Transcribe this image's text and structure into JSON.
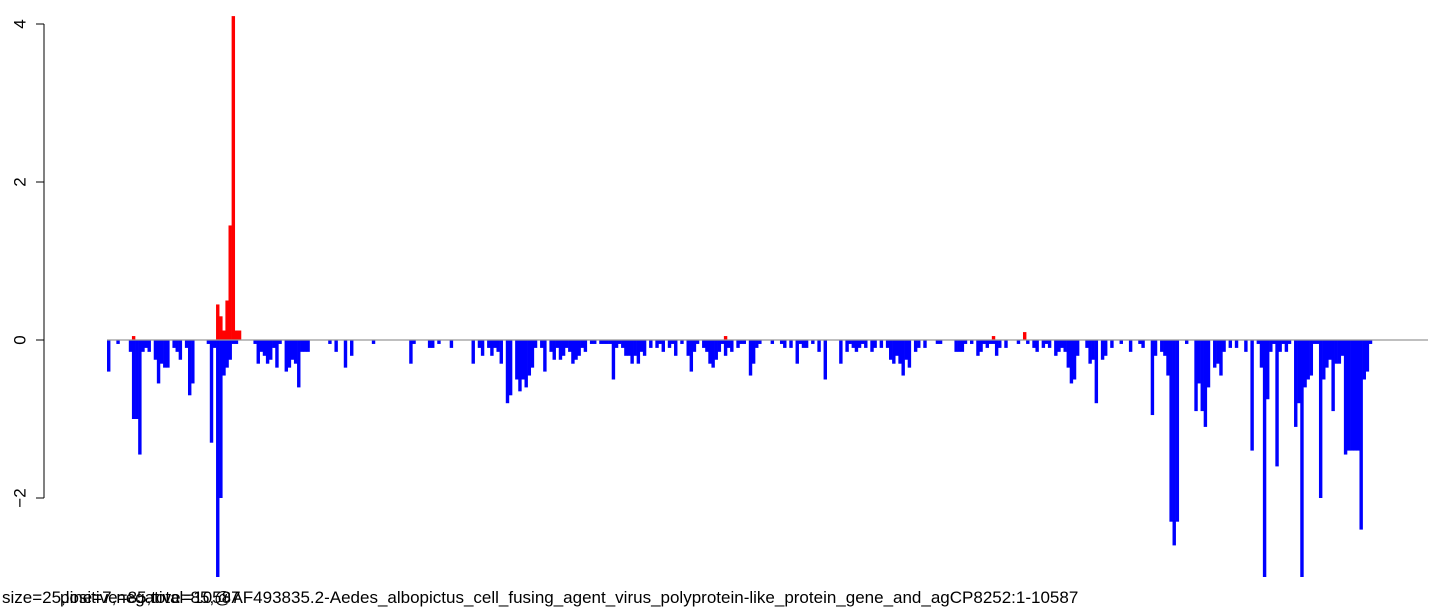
{
  "chart_data": {
    "type": "bar",
    "xlabel": "size=25,line=7,negative=85,@AF493835.2-Aedes_albopictus_cell_fusing_agent_virus_polyprotein-like_protein_gene_and_agCP8252:1-10587",
    "xlabel_overlap": "positive=85,total=10587",
    "ylim": [
      -3.0,
      4.2
    ],
    "yticks": [
      -2,
      0,
      2,
      4
    ],
    "ytick_labels": [
      "−2",
      "0",
      "2",
      "4"
    ],
    "bin_count": 424,
    "colors": {
      "positive": "#ff0000",
      "negative": "#0000ff",
      "baseline": "#999999"
    },
    "negative_bars": [
      [
        0,
        -0.4
      ],
      [
        3,
        -0.05
      ],
      [
        7,
        -0.15
      ],
      [
        8,
        -1.0
      ],
      [
        9,
        -1.0
      ],
      [
        10,
        -1.45
      ],
      [
        11,
        -0.15
      ],
      [
        12,
        -0.1
      ],
      [
        13,
        -0.15
      ],
      [
        15,
        -0.25
      ],
      [
        16,
        -0.55
      ],
      [
        17,
        -0.3
      ],
      [
        18,
        -0.35
      ],
      [
        19,
        -0.35
      ],
      [
        21,
        -0.1
      ],
      [
        22,
        -0.15
      ],
      [
        23,
        -0.25
      ],
      [
        25,
        -0.1
      ],
      [
        26,
        -0.7
      ],
      [
        27,
        -0.55
      ],
      [
        32,
        -0.05
      ],
      [
        33,
        -1.3
      ],
      [
        34,
        -0.1
      ],
      [
        35,
        -3.0
      ],
      [
        36,
        -2.0
      ],
      [
        37,
        -0.45
      ],
      [
        38,
        -0.35
      ],
      [
        39,
        -0.25
      ],
      [
        40,
        -0.05
      ],
      [
        41,
        -0.05
      ],
      [
        47,
        -0.05
      ],
      [
        48,
        -0.3
      ],
      [
        49,
        -0.15
      ],
      [
        50,
        -0.2
      ],
      [
        51,
        -0.3
      ],
      [
        52,
        -0.25
      ],
      [
        53,
        -0.1
      ],
      [
        54,
        -0.35
      ],
      [
        55,
        -0.05
      ],
      [
        57,
        -0.4
      ],
      [
        58,
        -0.35
      ],
      [
        59,
        -0.25
      ],
      [
        60,
        -0.3
      ],
      [
        61,
        -0.6
      ],
      [
        62,
        -0.15
      ],
      [
        63,
        -0.15
      ],
      [
        64,
        -0.15
      ],
      [
        71,
        -0.05
      ],
      [
        73,
        -0.15
      ],
      [
        76,
        -0.35
      ],
      [
        78,
        -0.2
      ],
      [
        85,
        -0.05
      ],
      [
        97,
        -0.3
      ],
      [
        98,
        -0.05
      ],
      [
        103,
        -0.1
      ],
      [
        104,
        -0.1
      ],
      [
        106,
        -0.05
      ],
      [
        110,
        -0.1
      ],
      [
        117,
        -0.3
      ],
      [
        119,
        -0.1
      ],
      [
        120,
        -0.2
      ],
      [
        122,
        -0.1
      ],
      [
        123,
        -0.2
      ],
      [
        124,
        -0.1
      ],
      [
        125,
        -0.15
      ],
      [
        126,
        -0.3
      ],
      [
        128,
        -0.8
      ],
      [
        129,
        -0.7
      ],
      [
        131,
        -0.5
      ],
      [
        132,
        -0.65
      ],
      [
        133,
        -0.5
      ],
      [
        134,
        -0.6
      ],
      [
        135,
        -0.45
      ],
      [
        136,
        -0.35
      ],
      [
        137,
        -0.1
      ],
      [
        139,
        -0.1
      ],
      [
        140,
        -0.4
      ],
      [
        142,
        -0.15
      ],
      [
        143,
        -0.25
      ],
      [
        144,
        -0.1
      ],
      [
        145,
        -0.25
      ],
      [
        146,
        -0.2
      ],
      [
        147,
        -0.1
      ],
      [
        148,
        -0.15
      ],
      [
        149,
        -0.3
      ],
      [
        150,
        -0.25
      ],
      [
        151,
        -0.2
      ],
      [
        152,
        -0.1
      ],
      [
        153,
        -0.15
      ],
      [
        155,
        -0.05
      ],
      [
        156,
        -0.05
      ],
      [
        158,
        -0.05
      ],
      [
        159,
        -0.05
      ],
      [
        160,
        -0.05
      ],
      [
        161,
        -0.05
      ],
      [
        162,
        -0.5
      ],
      [
        163,
        -0.1
      ],
      [
        164,
        -0.05
      ],
      [
        165,
        -0.1
      ],
      [
        166,
        -0.2
      ],
      [
        167,
        -0.2
      ],
      [
        168,
        -0.3
      ],
      [
        169,
        -0.2
      ],
      [
        170,
        -0.3
      ],
      [
        171,
        -0.15
      ],
      [
        172,
        -0.2
      ],
      [
        174,
        -0.1
      ],
      [
        176,
        -0.1
      ],
      [
        177,
        -0.05
      ],
      [
        178,
        -0.15
      ],
      [
        180,
        -0.1
      ],
      [
        181,
        -0.05
      ],
      [
        182,
        -0.2
      ],
      [
        184,
        -0.05
      ],
      [
        186,
        -0.2
      ],
      [
        187,
        -0.4
      ],
      [
        188,
        -0.15
      ],
      [
        189,
        -0.05
      ],
      [
        191,
        -0.1
      ],
      [
        192,
        -0.15
      ],
      [
        193,
        -0.3
      ],
      [
        194,
        -0.35
      ],
      [
        195,
        -0.25
      ],
      [
        196,
        -0.15
      ],
      [
        197,
        -0.05
      ],
      [
        198,
        -0.2
      ],
      [
        199,
        -0.1
      ],
      [
        200,
        -0.15
      ],
      [
        202,
        -0.1
      ],
      [
        203,
        -0.05
      ],
      [
        204,
        -0.05
      ],
      [
        206,
        -0.45
      ],
      [
        207,
        -0.3
      ],
      [
        208,
        -0.1
      ],
      [
        209,
        -0.05
      ],
      [
        213,
        -0.05
      ],
      [
        216,
        -0.05
      ],
      [
        217,
        -0.1
      ],
      [
        219,
        -0.1
      ],
      [
        221,
        -0.3
      ],
      [
        222,
        -0.05
      ],
      [
        223,
        -0.1
      ],
      [
        224,
        -0.1
      ],
      [
        226,
        -0.05
      ],
      [
        228,
        -0.15
      ],
      [
        230,
        -0.5
      ],
      [
        235,
        -0.3
      ],
      [
        237,
        -0.15
      ],
      [
        238,
        -0.05
      ],
      [
        239,
        -0.1
      ],
      [
        240,
        -0.15
      ],
      [
        241,
        -0.1
      ],
      [
        242,
        -0.05
      ],
      [
        243,
        -0.1
      ],
      [
        245,
        -0.15
      ],
      [
        246,
        -0.1
      ],
      [
        248,
        -0.1
      ],
      [
        250,
        -0.1
      ],
      [
        251,
        -0.25
      ],
      [
        252,
        -0.3
      ],
      [
        253,
        -0.2
      ],
      [
        254,
        -0.3
      ],
      [
        255,
        -0.45
      ],
      [
        256,
        -0.25
      ],
      [
        257,
        -0.35
      ],
      [
        259,
        -0.15
      ],
      [
        260,
        -0.1
      ],
      [
        262,
        -0.1
      ],
      [
        266,
        -0.05
      ],
      [
        267,
        -0.05
      ],
      [
        272,
        -0.15
      ],
      [
        273,
        -0.15
      ],
      [
        274,
        -0.15
      ],
      [
        275,
        -0.05
      ],
      [
        277,
        -0.05
      ],
      [
        279,
        -0.2
      ],
      [
        280,
        -0.15
      ],
      [
        281,
        -0.05
      ],
      [
        282,
        -0.1
      ],
      [
        283,
        -0.05
      ],
      [
        284,
        -0.05
      ],
      [
        285,
        -0.2
      ],
      [
        286,
        -0.1
      ],
      [
        288,
        -0.1
      ],
      [
        292,
        -0.05
      ],
      [
        295,
        -0.05
      ],
      [
        297,
        -0.1
      ],
      [
        298,
        -0.15
      ],
      [
        300,
        -0.1
      ],
      [
        301,
        -0.05
      ],
      [
        302,
        -0.1
      ],
      [
        304,
        -0.2
      ],
      [
        305,
        -0.15
      ],
      [
        306,
        -0.1
      ],
      [
        307,
        -0.15
      ],
      [
        308,
        -0.35
      ],
      [
        309,
        -0.55
      ],
      [
        310,
        -0.5
      ],
      [
        311,
        -0.2
      ],
      [
        314,
        -0.1
      ],
      [
        315,
        -0.3
      ],
      [
        316,
        -0.25
      ],
      [
        317,
        -0.8
      ],
      [
        319,
        -0.25
      ],
      [
        320,
        -0.2
      ],
      [
        322,
        -0.1
      ],
      [
        325,
        -0.05
      ],
      [
        328,
        -0.15
      ],
      [
        331,
        -0.05
      ],
      [
        332,
        -0.1
      ],
      [
        335,
        -0.95
      ],
      [
        336,
        -0.2
      ],
      [
        338,
        -0.15
      ],
      [
        339,
        -0.2
      ],
      [
        340,
        -0.45
      ],
      [
        341,
        -2.3
      ],
      [
        342,
        -2.6
      ],
      [
        343,
        -2.3
      ],
      [
        346,
        -0.05
      ],
      [
        349,
        -0.9
      ],
      [
        350,
        -0.55
      ],
      [
        351,
        -0.9
      ],
      [
        352,
        -1.1
      ],
      [
        353,
        -0.6
      ],
      [
        355,
        -0.35
      ],
      [
        356,
        -0.3
      ],
      [
        357,
        -0.45
      ],
      [
        358,
        -0.15
      ],
      [
        360,
        -0.1
      ],
      [
        362,
        -0.1
      ],
      [
        365,
        -0.15
      ],
      [
        367,
        -1.4
      ],
      [
        369,
        -0.05
      ],
      [
        370,
        -0.35
      ],
      [
        371,
        -3.0
      ],
      [
        372,
        -0.75
      ],
      [
        373,
        -0.15
      ],
      [
        374,
        -0.05
      ],
      [
        375,
        -1.6
      ],
      [
        376,
        -0.15
      ],
      [
        377,
        -0.05
      ],
      [
        378,
        -0.15
      ],
      [
        379,
        -0.05
      ],
      [
        381,
        -1.1
      ],
      [
        382,
        -0.8
      ],
      [
        383,
        -3.0
      ],
      [
        384,
        -0.6
      ],
      [
        385,
        -0.5
      ],
      [
        386,
        -0.45
      ],
      [
        387,
        -0.05
      ],
      [
        388,
        -0.05
      ],
      [
        389,
        -2.0
      ],
      [
        390,
        -0.5
      ],
      [
        391,
        -0.35
      ],
      [
        392,
        -0.25
      ],
      [
        393,
        -0.9
      ],
      [
        394,
        -0.3
      ],
      [
        395,
        -0.3
      ],
      [
        396,
        -0.2
      ],
      [
        397,
        -1.45
      ],
      [
        398,
        -1.4
      ],
      [
        399,
        -1.4
      ],
      [
        400,
        -1.4
      ],
      [
        401,
        -1.4
      ],
      [
        402,
        -2.4
      ],
      [
        403,
        -0.5
      ],
      [
        404,
        -0.4
      ],
      [
        405,
        -0.05
      ]
    ],
    "positive_bars": [
      [
        8,
        0.05
      ],
      [
        35,
        0.45
      ],
      [
        36,
        0.3
      ],
      [
        37,
        0.12
      ],
      [
        38,
        0.5
      ],
      [
        39,
        1.45
      ],
      [
        40,
        4.1
      ],
      [
        41,
        0.12
      ],
      [
        42,
        0.12
      ],
      [
        198,
        0.05
      ],
      [
        284,
        0.05
      ],
      [
        294,
        0.1
      ]
    ]
  }
}
